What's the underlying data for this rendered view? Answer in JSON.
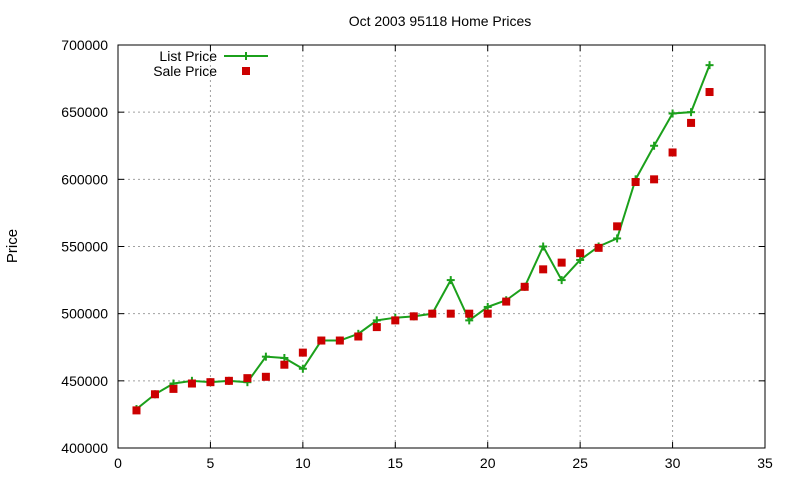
{
  "chart_data": {
    "type": "line",
    "title": "Oct 2003 95118 Home Prices",
    "xlabel": "",
    "ylabel": "Price",
    "xlim": [
      0,
      35
    ],
    "ylim": [
      400000,
      700000
    ],
    "xticks": [
      0,
      5,
      10,
      15,
      20,
      25,
      30,
      35
    ],
    "yticks": [
      400000,
      450000,
      500000,
      550000,
      600000,
      650000,
      700000
    ],
    "xtick_labels": [
      "0",
      "5",
      "10",
      "15",
      "20",
      "25",
      "30",
      "35"
    ],
    "ytick_labels": [
      "400000",
      "450000",
      "500000",
      "550000",
      "600000",
      "650000",
      "700000"
    ],
    "grid": true,
    "legend_position": "top-left",
    "series": [
      {
        "name": "List Price",
        "style": "linespoints",
        "marker": "plus",
        "color": "#1ba01b",
        "x": [
          1,
          2,
          3,
          4,
          5,
          6,
          7,
          8,
          9,
          10,
          11,
          12,
          13,
          14,
          15,
          16,
          17,
          18,
          19,
          20,
          21,
          22,
          23,
          24,
          25,
          26,
          27,
          28,
          29,
          30,
          31,
          32
        ],
        "y": [
          429000,
          440000,
          448000,
          450000,
          449000,
          450000,
          449000,
          468000,
          467000,
          459000,
          480000,
          480000,
          485000,
          495000,
          497000,
          498000,
          500000,
          525000,
          495000,
          505000,
          510000,
          520000,
          550000,
          525000,
          540000,
          550000,
          556000,
          600000,
          625000,
          649000,
          650000,
          685000
        ]
      },
      {
        "name": "Sale Price",
        "style": "points",
        "marker": "square",
        "color": "#cc0000",
        "x": [
          1,
          2,
          3,
          4,
          5,
          6,
          7,
          8,
          9,
          10,
          11,
          12,
          13,
          14,
          15,
          16,
          17,
          18,
          19,
          20,
          21,
          22,
          23,
          24,
          25,
          26,
          27,
          28,
          29,
          30,
          31,
          32
        ],
        "y": [
          428000,
          440000,
          444000,
          448000,
          449000,
          450000,
          452000,
          453000,
          462000,
          471000,
          480000,
          480000,
          483000,
          490000,
          495000,
          498000,
          500000,
          500000,
          500000,
          500000,
          509000,
          520000,
          533000,
          538000,
          545000,
          549000,
          565000,
          598000,
          600000,
          620000,
          642000,
          665000
        ]
      }
    ]
  }
}
